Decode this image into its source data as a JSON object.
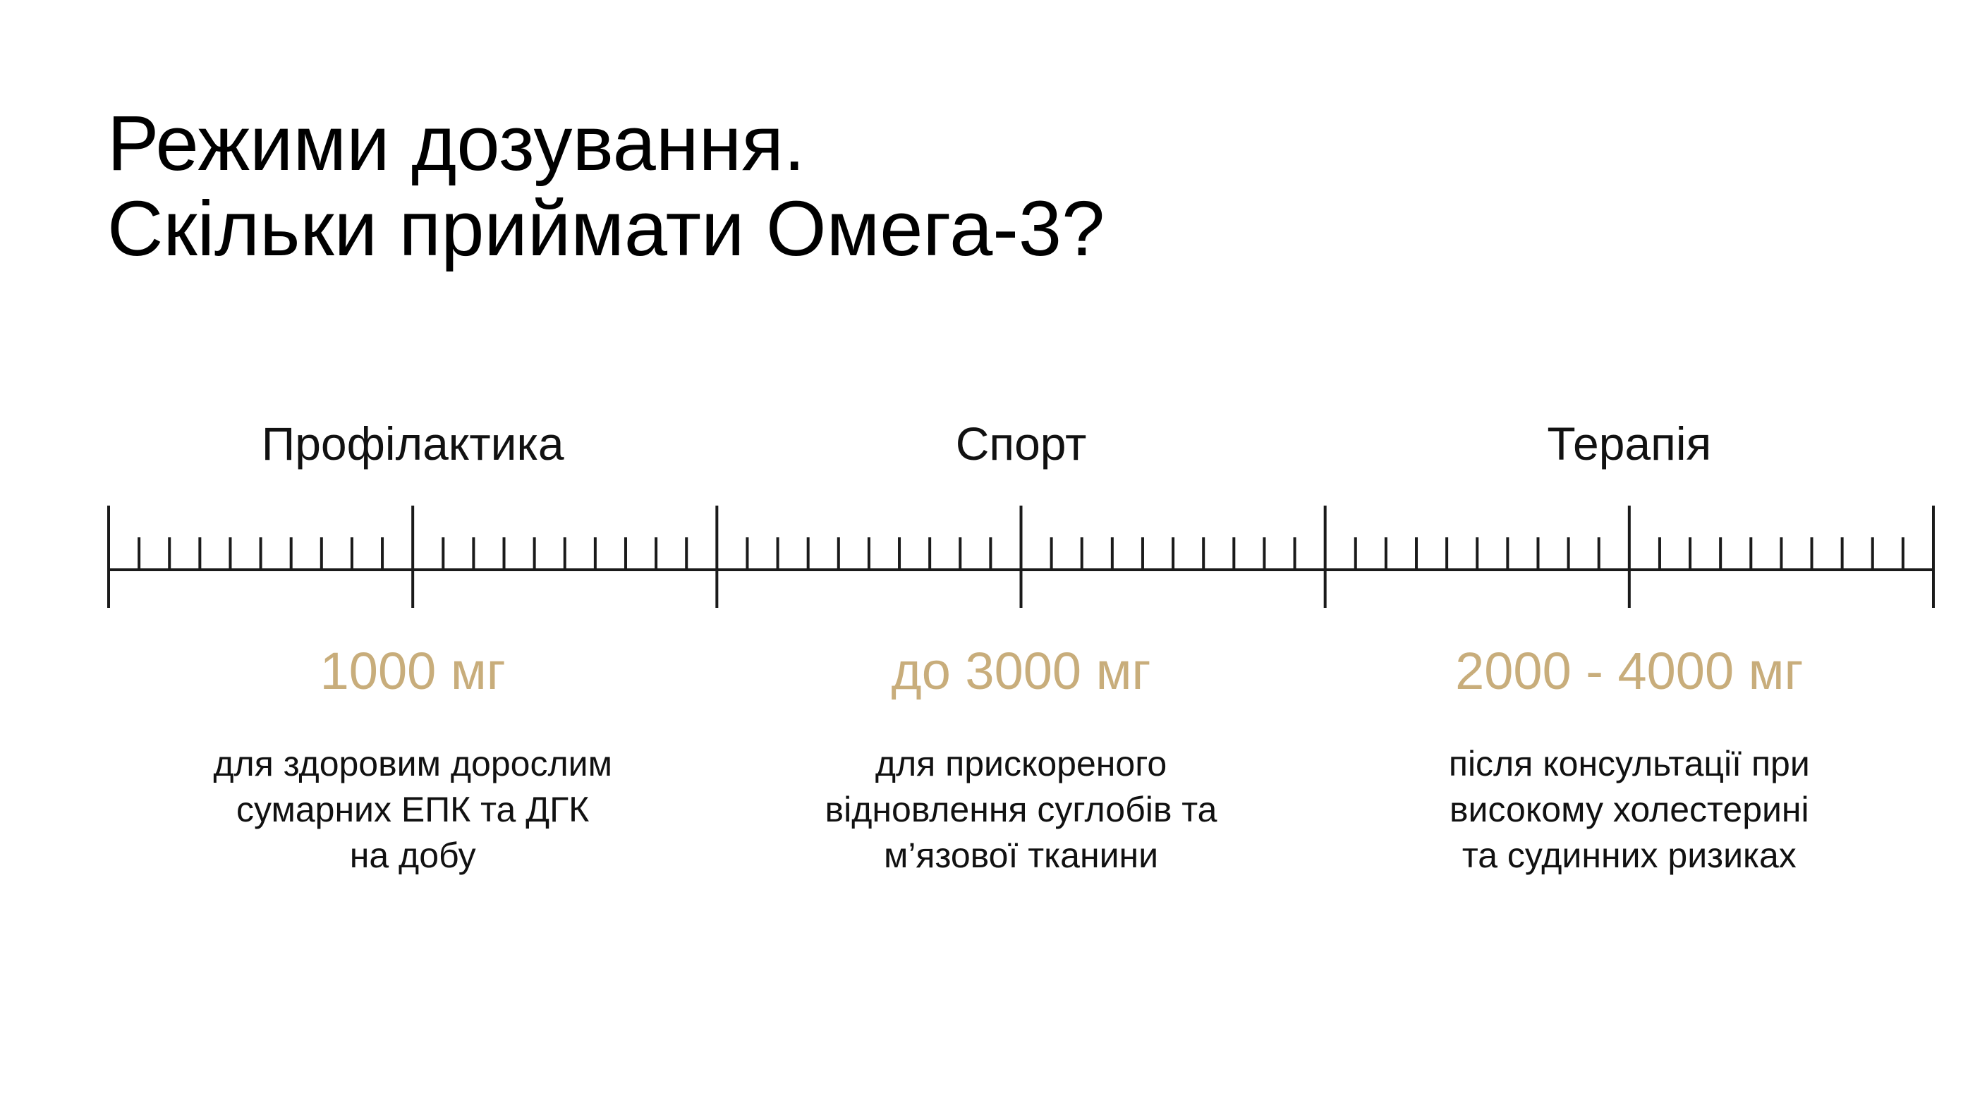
{
  "title": {
    "lines": [
      "Режими дозування.",
      "Скільки приймати Омега-3?"
    ]
  },
  "sections": [
    {
      "label": "Профілактика",
      "dose": "1000 мг",
      "description": [
        "для здоровим дорослим",
        "сумарних ЕПК та ДГК",
        "на добу"
      ]
    },
    {
      "label": "Спорт",
      "dose": "до 3000 мг",
      "description": [
        "для прискореного",
        "відновлення суглобів та",
        "м’язової тканини"
      ]
    },
    {
      "label": "Терапія",
      "dose": "2000 - 4000 мг",
      "description": [
        "після консультації при",
        "високому холестерині",
        "та судинних ризиках"
      ]
    }
  ]
}
